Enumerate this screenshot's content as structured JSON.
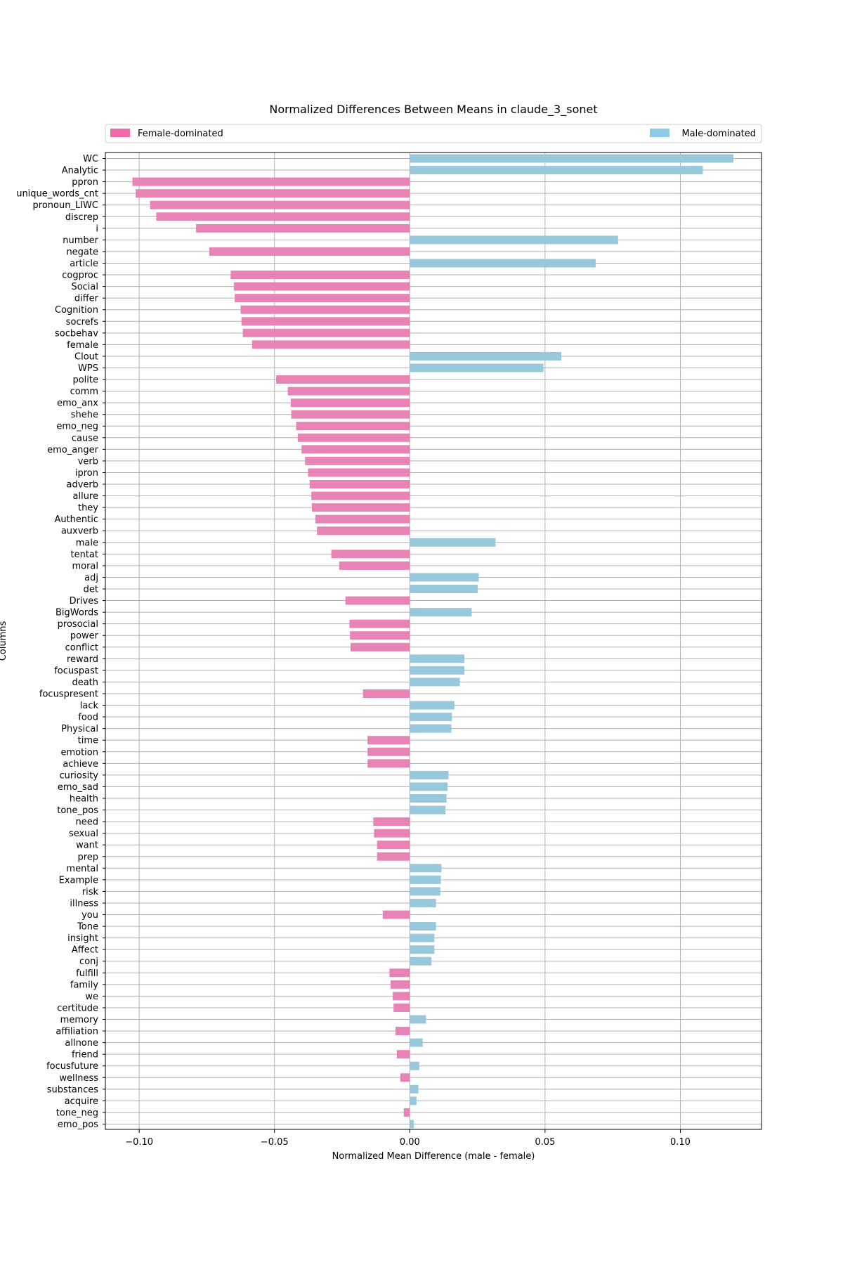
{
  "chart_data": {
    "type": "bar",
    "orientation": "horizontal",
    "title": "Normalized Differences Between Means in claude_3_sonet",
    "xlabel": "Normalized Mean Difference (male - female)",
    "ylabel": "Columns",
    "xlim": [
      -0.1125,
      0.13
    ],
    "xticks": [
      -0.1,
      -0.05,
      0.0,
      0.05,
      0.1
    ],
    "xtick_labels": [
      "−0.10",
      "−0.05",
      "0.00",
      "0.05",
      "0.10"
    ],
    "grid": true,
    "legend": {
      "placement": "top",
      "entries": [
        {
          "label": "Female-dominated",
          "color": "#f06aa9"
        },
        {
          "label": "Male-dominated",
          "color": "#8ecae6"
        }
      ]
    },
    "colors": {
      "female": "#e884b5",
      "male": "#98c8dc"
    },
    "categories": [
      "WC",
      "Analytic",
      "ppron",
      "unique_words_cnt",
      "pronoun_LIWC",
      "discrep",
      "i",
      "number",
      "negate",
      "article",
      "cogproc",
      "Social",
      "differ",
      "Cognition",
      "socrefs",
      "socbehav",
      "female",
      "Clout",
      "WPS",
      "polite",
      "comm",
      "emo_anx",
      "shehe",
      "emo_neg",
      "cause",
      "emo_anger",
      "verb",
      "ipron",
      "adverb",
      "allure",
      "they",
      "Authentic",
      "auxverb",
      "male",
      "tentat",
      "moral",
      "adj",
      "det",
      "Drives",
      "BigWords",
      "prosocial",
      "power",
      "conflict",
      "reward",
      "focuspast",
      "death",
      "focuspresent",
      "lack",
      "food",
      "Physical",
      "time",
      "emotion",
      "achieve",
      "curiosity",
      "emo_sad",
      "health",
      "tone_pos",
      "need",
      "sexual",
      "want",
      "prep",
      "mental",
      "Example",
      "risk",
      "illness",
      "you",
      "Tone",
      "insight",
      "Affect",
      "conj",
      "fulfill",
      "family",
      "we",
      "certitude",
      "memory",
      "affiliation",
      "allnone",
      "friend",
      "focusfuture",
      "wellness",
      "substances",
      "acquire",
      "tone_neg",
      "emo_pos"
    ],
    "values": [
      0.1196,
      0.1083,
      -0.1025,
      -0.1013,
      -0.096,
      -0.0937,
      -0.079,
      0.077,
      -0.0741,
      0.0687,
      -0.0662,
      -0.065,
      -0.0647,
      -0.0625,
      -0.0622,
      -0.0617,
      -0.0583,
      0.056,
      0.0494,
      -0.0494,
      -0.0451,
      -0.044,
      -0.0438,
      -0.042,
      -0.0414,
      -0.04,
      -0.0387,
      -0.0376,
      -0.037,
      -0.0364,
      -0.0362,
      -0.0349,
      -0.0343,
      0.0317,
      -0.029,
      -0.0261,
      0.0255,
      0.0251,
      -0.0238,
      0.0229,
      -0.0223,
      -0.0221,
      -0.0219,
      0.0202,
      0.0202,
      0.0185,
      -0.0173,
      0.0165,
      0.0156,
      0.0154,
      -0.0156,
      -0.0156,
      -0.0156,
      0.0143,
      0.014,
      0.0136,
      0.0132,
      -0.0135,
      -0.0132,
      -0.0121,
      -0.0121,
      0.0117,
      0.0115,
      0.0113,
      0.0097,
      -0.01,
      0.0097,
      0.0091,
      0.0091,
      0.008,
      -0.0075,
      -0.0071,
      -0.0063,
      -0.006,
      0.006,
      -0.0053,
      0.0048,
      -0.0048,
      0.0035,
      -0.0035,
      0.0032,
      0.0025,
      -0.0022,
      0.0015
    ]
  }
}
